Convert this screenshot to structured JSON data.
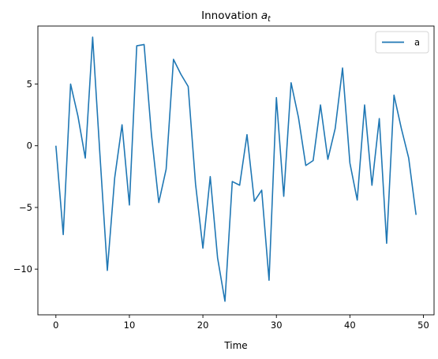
{
  "chart_data": {
    "type": "line",
    "title_main": "Innovation ",
    "title_var": "a",
    "title_sub": "t",
    "xlabel": "Time",
    "ylabel": "",
    "xlim": [
      -2.45,
      51.45
    ],
    "ylim": [
      -13.7,
      9.7
    ],
    "xticks": [
      0,
      10,
      20,
      30,
      40,
      50
    ],
    "yticks": [
      -10,
      -5,
      0,
      5
    ],
    "ytick_labels": [
      "−10",
      "−5",
      "0",
      "5"
    ],
    "grid": false,
    "legend_position": "top-right",
    "series": [
      {
        "name": "a",
        "color": "#1f77b4",
        "x": [
          0,
          1,
          2,
          3,
          4,
          5,
          6,
          7,
          8,
          9,
          10,
          11,
          12,
          13,
          14,
          15,
          16,
          17,
          18,
          19,
          20,
          21,
          22,
          23,
          24,
          25,
          26,
          27,
          28,
          29,
          30,
          31,
          32,
          33,
          34,
          35,
          36,
          37,
          38,
          39,
          40,
          41,
          42,
          43,
          44,
          45,
          46,
          47,
          48,
          49
        ],
        "y": [
          0.0,
          -7.2,
          5.0,
          2.4,
          -1.0,
          8.8,
          -0.8,
          -10.1,
          -2.6,
          1.7,
          -4.8,
          8.1,
          8.2,
          0.9,
          -4.6,
          -1.9,
          7.0,
          5.8,
          4.8,
          -3.1,
          -8.3,
          -2.5,
          -9.1,
          -12.6,
          -2.9,
          -3.2,
          0.9,
          -4.5,
          -3.6,
          -10.9,
          3.9,
          -4.1,
          5.1,
          2.3,
          -1.6,
          -1.2,
          3.3,
          -1.1,
          1.4,
          6.3,
          -1.4,
          -4.4,
          3.3,
          -3.2,
          2.2,
          -7.9,
          4.1,
          1.4,
          -1.0,
          -5.6
        ]
      }
    ]
  }
}
